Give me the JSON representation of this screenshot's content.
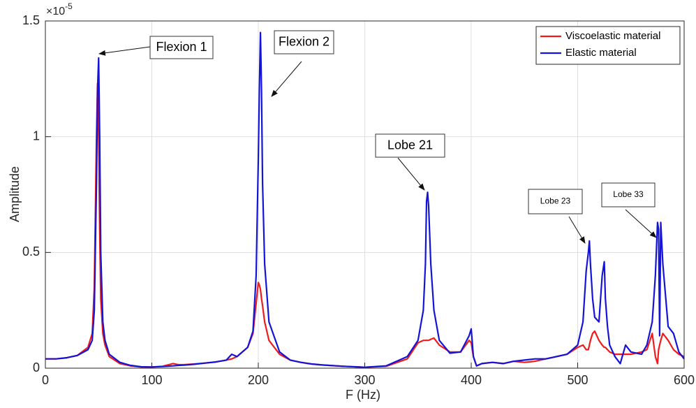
{
  "chart_data": {
    "type": "line",
    "xlabel": "F (Hz)",
    "ylabel": "Amplitude",
    "multiplier": "×10",
    "multiplier_exponent": "-5",
    "x": [
      0,
      10,
      20,
      30,
      40,
      44,
      46,
      48,
      49,
      50,
      51,
      52,
      54,
      56,
      60,
      70,
      80,
      90,
      100,
      110,
      120,
      125,
      130,
      140,
      150,
      160,
      170,
      175,
      180,
      190,
      195,
      198,
      200,
      201,
      202,
      203,
      204,
      206,
      210,
      220,
      230,
      240,
      250,
      260,
      280,
      300,
      320,
      340,
      350,
      355,
      357,
      358,
      359,
      360,
      362,
      365,
      370,
      380,
      390,
      398,
      400,
      402,
      405,
      410,
      420,
      430,
      440,
      450,
      460,
      470,
      480,
      490,
      500,
      505,
      508,
      510,
      511,
      512,
      514,
      516,
      520,
      523,
      525,
      526,
      528,
      530,
      535,
      540,
      545,
      550,
      560,
      565,
      570,
      573,
      575,
      576,
      577,
      578,
      580,
      585,
      590,
      595,
      600
    ],
    "series": [
      {
        "name": "Viscoelastic material",
        "color": "#ee1c1c",
        "values": [
          0.04,
          0.04,
          0.045,
          0.055,
          0.09,
          0.15,
          0.35,
          1.0,
          1.23,
          1.0,
          0.6,
          0.3,
          0.15,
          0.1,
          0.05,
          0.02,
          0.01,
          0.005,
          0.005,
          0.008,
          0.02,
          0.015,
          0.015,
          0.018,
          0.022,
          0.027,
          0.035,
          0.04,
          0.05,
          0.09,
          0.15,
          0.28,
          0.37,
          0.36,
          0.34,
          0.3,
          0.27,
          0.2,
          0.12,
          0.06,
          0.035,
          0.025,
          0.018,
          0.014,
          0.008,
          0.004,
          0.008,
          0.04,
          0.11,
          0.12,
          0.12,
          0.12,
          0.12,
          0.12,
          0.125,
          0.13,
          0.1,
          0.07,
          0.07,
          0.12,
          0.11,
          0.05,
          0.01,
          0.02,
          0.025,
          0.02,
          0.03,
          0.025,
          0.03,
          0.04,
          0.05,
          0.06,
          0.09,
          0.1,
          0.08,
          0.08,
          0.1,
          0.12,
          0.15,
          0.16,
          0.12,
          0.1,
          0.09,
          0.09,
          0.08,
          0.07,
          0.06,
          0.06,
          0.06,
          0.06,
          0.07,
          0.08,
          0.15,
          0.05,
          0.02,
          0.08,
          0.1,
          0.12,
          0.15,
          0.12,
          0.08,
          0.06,
          0.05
        ]
      },
      {
        "name": "Elastic material",
        "color": "#1414d8",
        "values": [
          0.04,
          0.04,
          0.045,
          0.055,
          0.08,
          0.12,
          0.25,
          0.8,
          1.2,
          1.34,
          1.0,
          0.5,
          0.2,
          0.12,
          0.06,
          0.025,
          0.012,
          0.006,
          0.005,
          0.007,
          0.01,
          0.012,
          0.013,
          0.017,
          0.022,
          0.027,
          0.035,
          0.06,
          0.05,
          0.09,
          0.16,
          0.4,
          0.9,
          1.2,
          1.45,
          1.2,
          0.8,
          0.45,
          0.2,
          0.07,
          0.035,
          0.025,
          0.018,
          0.014,
          0.008,
          0.004,
          0.01,
          0.05,
          0.12,
          0.25,
          0.45,
          0.72,
          0.76,
          0.7,
          0.45,
          0.25,
          0.12,
          0.065,
          0.07,
          0.14,
          0.17,
          0.05,
          0.01,
          0.02,
          0.025,
          0.02,
          0.03,
          0.035,
          0.04,
          0.04,
          0.05,
          0.06,
          0.1,
          0.2,
          0.42,
          0.5,
          0.55,
          0.45,
          0.3,
          0.22,
          0.2,
          0.4,
          0.46,
          0.3,
          0.18,
          0.1,
          0.05,
          0.02,
          0.1,
          0.07,
          0.06,
          0.1,
          0.2,
          0.4,
          0.63,
          0.6,
          0.14,
          0.63,
          0.45,
          0.18,
          0.15,
          0.07,
          0.04
        ]
      }
    ],
    "xlim": [
      0,
      600
    ],
    "xticks": [
      0,
      100,
      200,
      300,
      400,
      500,
      600
    ],
    "ylim": [
      0,
      1.5
    ],
    "yticks": [
      0,
      0.5,
      1,
      1.5
    ],
    "grid": true,
    "legend": "upper right",
    "annotations": [
      "Flexion 1",
      "Flexion 2",
      "Lobe 21",
      "Lobe 23",
      "Lobe 33"
    ]
  }
}
